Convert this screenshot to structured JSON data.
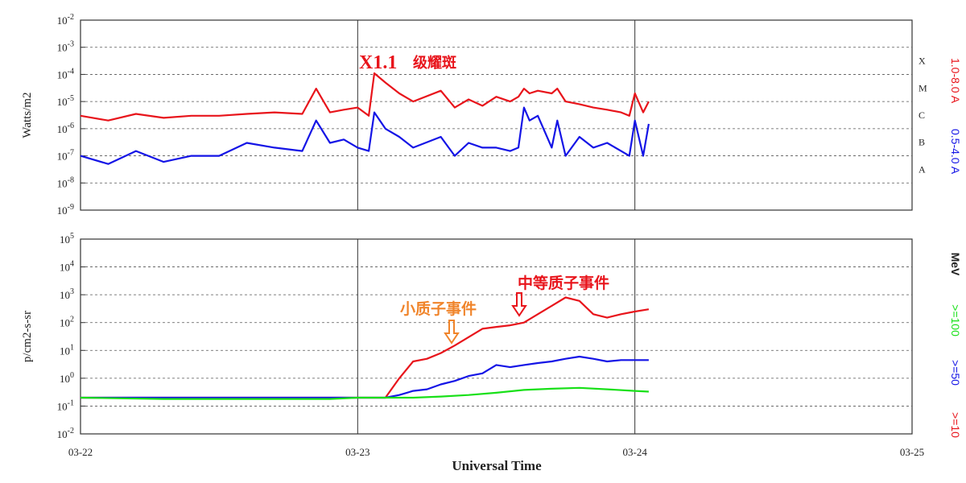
{
  "chart_data": [
    {
      "type": "line",
      "panel": "xray",
      "ylabel": "Watts/m2",
      "y_scale": "log",
      "ylim": [
        1e-09,
        0.01
      ],
      "y_ticks": [
        {
          "base": "10",
          "exp": "-2"
        },
        {
          "base": "10",
          "exp": "-3"
        },
        {
          "base": "10",
          "exp": "-4"
        },
        {
          "base": "10",
          "exp": "-5"
        },
        {
          "base": "10",
          "exp": "-6"
        },
        {
          "base": "10",
          "exp": "-7"
        },
        {
          "base": "10",
          "exp": "-8"
        },
        {
          "base": "10",
          "exp": "-9"
        }
      ],
      "grid": true,
      "flare_classes": [
        "X",
        "M",
        "C",
        "B",
        "A"
      ],
      "x_days": [
        0,
        3
      ],
      "series": [
        {
          "name": "1.0-8.0 A",
          "color": "#e8141b",
          "x": [
            0,
            0.1,
            0.2,
            0.3,
            0.4,
            0.5,
            0.6,
            0.7,
            0.8,
            0.85,
            0.9,
            0.95,
            1.0,
            1.04,
            1.06,
            1.1,
            1.15,
            1.2,
            1.3,
            1.35,
            1.4,
            1.45,
            1.5,
            1.55,
            1.58,
            1.6,
            1.62,
            1.65,
            1.7,
            1.72,
            1.75,
            1.8,
            1.85,
            1.9,
            1.95,
            1.98,
            2.0,
            2.03,
            2.05
          ],
          "y": [
            3e-06,
            2e-06,
            3.5e-06,
            2.5e-06,
            3e-06,
            3e-06,
            3.5e-06,
            4e-06,
            3.5e-06,
            3e-05,
            4e-06,
            5e-06,
            6e-06,
            3e-06,
            0.00011,
            5e-05,
            2e-05,
            1e-05,
            2.5e-05,
            6e-06,
            1.2e-05,
            7e-06,
            1.5e-05,
            1e-05,
            1.5e-05,
            3e-05,
            2e-05,
            2.5e-05,
            2e-05,
            3e-05,
            1e-05,
            8e-06,
            6e-06,
            5e-06,
            4e-06,
            3e-06,
            2e-05,
            4e-06,
            1e-05
          ]
        },
        {
          "name": "0.5-4.0 A",
          "color": "#1414e6",
          "x": [
            0,
            0.1,
            0.2,
            0.3,
            0.4,
            0.5,
            0.6,
            0.7,
            0.8,
            0.85,
            0.9,
            0.95,
            1.0,
            1.04,
            1.06,
            1.1,
            1.15,
            1.2,
            1.3,
            1.35,
            1.4,
            1.45,
            1.5,
            1.55,
            1.58,
            1.6,
            1.62,
            1.65,
            1.7,
            1.72,
            1.75,
            1.8,
            1.85,
            1.9,
            1.95,
            1.98,
            2.0,
            2.03,
            2.05
          ],
          "y": [
            1e-07,
            5e-08,
            1.5e-07,
            6e-08,
            1e-07,
            1e-07,
            3e-07,
            2e-07,
            1.5e-07,
            2e-06,
            3e-07,
            4e-07,
            2e-07,
            1.5e-07,
            4e-06,
            1e-06,
            5e-07,
            2e-07,
            5e-07,
            1e-07,
            3e-07,
            2e-07,
            2e-07,
            1.5e-07,
            2e-07,
            6e-06,
            2e-06,
            3e-06,
            2e-07,
            2e-06,
            1e-07,
            5e-07,
            2e-07,
            3e-07,
            1.5e-07,
            1e-07,
            2e-06,
            1e-07,
            1.5e-06
          ]
        }
      ],
      "annotations": [
        {
          "text": "X1.1",
          "color": "#e8141b"
        },
        {
          "text": "级耀斑",
          "color": "#e8141b"
        }
      ]
    },
    {
      "type": "line",
      "panel": "proton",
      "ylabel": "p/cm2-s-sr",
      "y_scale": "log",
      "ylim": [
        0.01,
        100000.0
      ],
      "y_ticks": [
        {
          "base": "10",
          "exp": "5"
        },
        {
          "base": "10",
          "exp": "4"
        },
        {
          "base": "10",
          "exp": "3"
        },
        {
          "base": "10",
          "exp": "2"
        },
        {
          "base": "10",
          "exp": "1"
        },
        {
          "base": "10",
          "exp": "0"
        },
        {
          "base": "10",
          "exp": "-1"
        },
        {
          "base": "10",
          "exp": "-2"
        }
      ],
      "grid": true,
      "xlabel": "Universal Time",
      "x_ticks": [
        "03-22",
        "03-23",
        "03-24",
        "03-25"
      ],
      "x_days": [
        0,
        3
      ],
      "unit_label": "MeV",
      "series": [
        {
          "name": ">=10",
          "color": "#e8141b",
          "x": [
            0,
            0.3,
            0.6,
            0.9,
            1.0,
            1.05,
            1.1,
            1.15,
            1.2,
            1.25,
            1.3,
            1.35,
            1.4,
            1.45,
            1.5,
            1.55,
            1.6,
            1.65,
            1.7,
            1.75,
            1.8,
            1.85,
            1.9,
            1.95,
            2.0,
            2.05
          ],
          "y": [
            0.2,
            0.2,
            0.2,
            0.2,
            0.2,
            0.2,
            0.2,
            1,
            4,
            5,
            8,
            15,
            30,
            60,
            70,
            80,
            100,
            200,
            400,
            800,
            600,
            200,
            150,
            200,
            250,
            300
          ]
        },
        {
          "name": ">=50",
          "color": "#1414e6",
          "x": [
            0,
            0.3,
            0.6,
            0.9,
            1.0,
            1.1,
            1.15,
            1.2,
            1.25,
            1.3,
            1.35,
            1.4,
            1.45,
            1.5,
            1.55,
            1.6,
            1.65,
            1.7,
            1.75,
            1.8,
            1.85,
            1.9,
            1.95,
            2.0,
            2.05
          ],
          "y": [
            0.2,
            0.2,
            0.2,
            0.2,
            0.2,
            0.2,
            0.25,
            0.35,
            0.4,
            0.6,
            0.8,
            1.2,
            1.5,
            3,
            2.5,
            3,
            3.5,
            4,
            5,
            6,
            5,
            4,
            4.5,
            4.5,
            4.5
          ]
        },
        {
          "name": ">=100",
          "color": "#18e018",
          "x": [
            0,
            0.3,
            0.6,
            0.9,
            1.0,
            1.1,
            1.2,
            1.3,
            1.4,
            1.5,
            1.6,
            1.7,
            1.8,
            1.9,
            2.0,
            2.05
          ],
          "y": [
            0.2,
            0.18,
            0.18,
            0.18,
            0.2,
            0.2,
            0.2,
            0.22,
            0.25,
            0.3,
            0.38,
            0.42,
            0.45,
            0.4,
            0.35,
            0.33
          ]
        }
      ],
      "annotations": [
        {
          "text": "小质子事件",
          "color": "#f0842a"
        },
        {
          "text": "中等质子事件",
          "color": "#e8141b"
        }
      ]
    }
  ]
}
